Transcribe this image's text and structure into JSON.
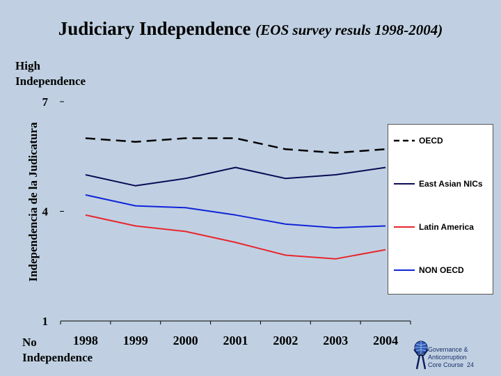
{
  "slide": {
    "title_main": "Judiciary Independence",
    "title_sub": "(EOS survey resuls 1998-2004)",
    "label_top_line1": "High",
    "label_top_line2": "Independence",
    "label_bottom_line1": "No",
    "label_bottom_line2": "Independence",
    "footer_line1": "Governance &",
    "footer_line2": "Anticorruption",
    "footer_line3": "Core Course",
    "page_number": "24"
  },
  "chart_data": {
    "type": "line",
    "title": "Judiciary Independence (EOS survey resuls 1998-2004)",
    "xlabel": "",
    "ylabel": "Independencia de la Judicatura",
    "categories": [
      "1998",
      "1999",
      "2000",
      "2001",
      "2002",
      "2003",
      "2004"
    ],
    "ylim": [
      1,
      7
    ],
    "yticks": [
      1,
      4,
      7
    ],
    "ytick_labels": [
      "1",
      "4",
      "7"
    ],
    "legend_position": "right",
    "series": [
      {
        "name": "OECD",
        "values": [
          6.0,
          5.9,
          6.0,
          6.0,
          5.7,
          5.6,
          5.7
        ],
        "color": "#000000",
        "dash": true
      },
      {
        "name": "East Asian NICs",
        "values": [
          5.0,
          4.7,
          4.9,
          5.2,
          4.9,
          5.0,
          5.2
        ],
        "color": "#0a0a55",
        "dash": false
      },
      {
        "name": "Latin America",
        "values": [
          3.9,
          3.6,
          3.45,
          3.15,
          2.8,
          2.7,
          2.95
        ],
        "color": "#e8262e",
        "dash": false
      },
      {
        "name": "NON OECD",
        "values": [
          4.45,
          4.15,
          4.1,
          3.9,
          3.65,
          3.55,
          3.6
        ],
        "color": "#1024d8",
        "dash": false
      }
    ]
  }
}
